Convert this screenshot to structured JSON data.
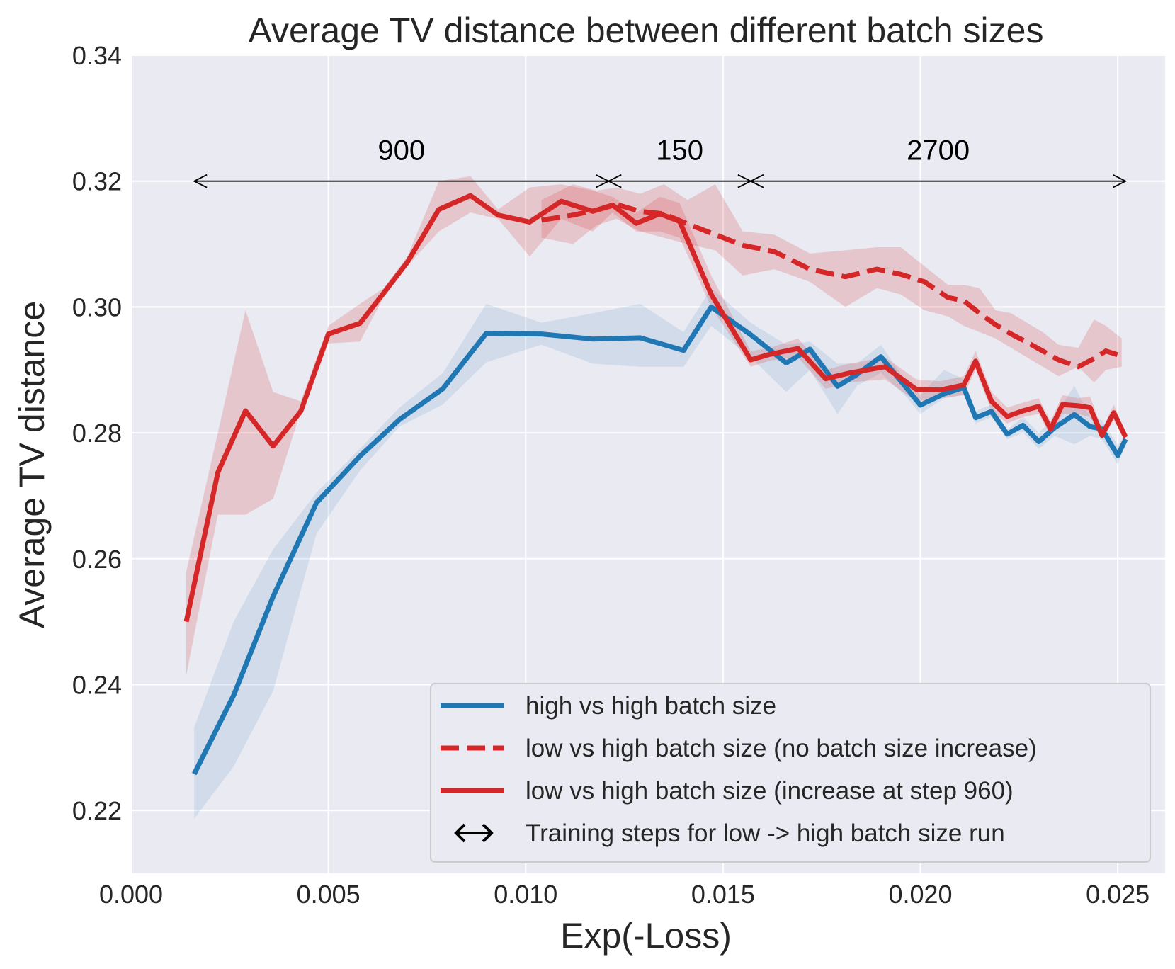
{
  "chart_data": {
    "type": "line",
    "title": "Average TV distance between different batch sizes",
    "xlabel": "Exp(-Loss)",
    "ylabel": "Average TV distance",
    "xlim": [
      0.0,
      0.0262
    ],
    "ylim": [
      0.21,
      0.34
    ],
    "xticks": [
      0.0,
      0.005,
      0.01,
      0.015,
      0.02,
      0.025
    ],
    "xtick_labels": [
      "0.000",
      "0.005",
      "0.010",
      "0.015",
      "0.020",
      "0.025"
    ],
    "yticks": [
      0.22,
      0.24,
      0.26,
      0.28,
      0.3,
      0.32,
      0.34
    ],
    "ytick_labels": [
      "0.22",
      "0.24",
      "0.26",
      "0.28",
      "0.30",
      "0.32",
      "0.34"
    ],
    "grid": true,
    "legend_position": "lower-right",
    "colors": {
      "blue": "#1f77b4",
      "red": "#d62728",
      "background": "#eaeaf2",
      "grid": "#ffffff"
    },
    "series": [
      {
        "name": "high vs high batch size",
        "color": "#1f77b4",
        "style": "solid",
        "x": [
          0.0016,
          0.0026,
          0.0036,
          0.0047,
          0.0058,
          0.0068,
          0.0079,
          0.009,
          0.0104,
          0.0117,
          0.0129,
          0.014,
          0.0147,
          0.0157,
          0.0166,
          0.0172,
          0.0179,
          0.0184,
          0.019,
          0.0196,
          0.02,
          0.0206,
          0.0211,
          0.0214,
          0.0218,
          0.0222,
          0.0226,
          0.023,
          0.0234,
          0.0239,
          0.0243,
          0.0246,
          0.025,
          0.0252
        ],
        "y": [
          0.2258,
          0.2383,
          0.254,
          0.2689,
          0.2763,
          0.2821,
          0.287,
          0.2958,
          0.2957,
          0.2949,
          0.2951,
          0.2931,
          0.3,
          0.2956,
          0.2911,
          0.2933,
          0.2874,
          0.2893,
          0.2921,
          0.2875,
          0.2844,
          0.2862,
          0.2872,
          0.2824,
          0.2834,
          0.2798,
          0.2812,
          0.2786,
          0.2808,
          0.2829,
          0.281,
          0.2806,
          0.2764,
          0.279
        ],
        "band_low": [
          0.2187,
          0.227,
          0.239,
          0.264,
          0.274,
          0.281,
          0.2845,
          0.2912,
          0.294,
          0.291,
          0.2905,
          0.2905,
          0.297,
          0.292,
          0.2865,
          0.29,
          0.283,
          0.2875,
          0.2895,
          0.286,
          0.283,
          0.2855,
          0.286,
          0.2815,
          0.2825,
          0.279,
          0.28,
          0.2775,
          0.2795,
          0.2782,
          0.2795,
          0.279,
          0.275,
          0.2782
        ],
        "band_high": [
          0.2332,
          0.25,
          0.2615,
          0.2705,
          0.2775,
          0.284,
          0.2895,
          0.3005,
          0.2975,
          0.299,
          0.3005,
          0.296,
          0.303,
          0.2975,
          0.294,
          0.2945,
          0.291,
          0.291,
          0.294,
          0.2885,
          0.286,
          0.29,
          0.2885,
          0.2835,
          0.2845,
          0.2805,
          0.2825,
          0.28,
          0.2825,
          0.2875,
          0.2825,
          0.282,
          0.278,
          0.2798
        ]
      },
      {
        "name": "low vs high batch size (no batch size increase)",
        "color": "#d62728",
        "style": "dashed",
        "x": [
          0.0104,
          0.0112,
          0.0118,
          0.0123,
          0.0129,
          0.0135,
          0.0141,
          0.0148,
          0.0155,
          0.0163,
          0.0172,
          0.0181,
          0.0189,
          0.0195,
          0.0201,
          0.0207,
          0.0211,
          0.0215,
          0.0219,
          0.0223,
          0.0227,
          0.0231,
          0.0235,
          0.024,
          0.0244,
          0.0247,
          0.0251
        ],
        "y": [
          0.3138,
          0.3146,
          0.3154,
          0.3163,
          0.3152,
          0.3148,
          0.3132,
          0.3115,
          0.3098,
          0.3088,
          0.306,
          0.3048,
          0.306,
          0.3052,
          0.304,
          0.3015,
          0.301,
          0.299,
          0.2972,
          0.2957,
          0.2944,
          0.293,
          0.2916,
          0.2905,
          0.2918,
          0.293,
          0.2922
        ],
        "band_low": [
          0.311,
          0.31,
          0.313,
          0.314,
          0.312,
          0.311,
          0.31,
          0.309,
          0.305,
          0.306,
          0.304,
          0.3,
          0.303,
          0.302,
          0.2995,
          0.2985,
          0.297,
          0.296,
          0.295,
          0.2935,
          0.292,
          0.2905,
          0.289,
          0.2905,
          0.288,
          0.29,
          0.2905
        ],
        "band_high": [
          0.317,
          0.3195,
          0.3185,
          0.319,
          0.318,
          0.3195,
          0.317,
          0.3195,
          0.312,
          0.3115,
          0.3085,
          0.309,
          0.3095,
          0.3095,
          0.3065,
          0.3035,
          0.3035,
          0.303,
          0.2995,
          0.299,
          0.2975,
          0.296,
          0.294,
          0.2935,
          0.298,
          0.297,
          0.295
        ]
      },
      {
        "name": "low vs high batch size (increase at step 960)",
        "color": "#d62728",
        "style": "solid",
        "x": [
          0.0014,
          0.0022,
          0.0029,
          0.0036,
          0.0043,
          0.005,
          0.0058,
          0.0064,
          0.007,
          0.0078,
          0.0086,
          0.0093,
          0.0101,
          0.0109,
          0.0117,
          0.0122,
          0.0128,
          0.0134,
          0.0139,
          0.0147,
          0.0157,
          0.0162,
          0.0169,
          0.0176,
          0.0182,
          0.0191,
          0.0199,
          0.0205,
          0.0211,
          0.0214,
          0.0218,
          0.0222,
          0.0226,
          0.023,
          0.0233,
          0.0236,
          0.024,
          0.0243,
          0.0246,
          0.0249,
          0.0252
        ],
        "y": [
          0.25,
          0.2737,
          0.2835,
          0.2779,
          0.2834,
          0.2957,
          0.2974,
          0.3022,
          0.3071,
          0.3155,
          0.3177,
          0.3146,
          0.3135,
          0.3168,
          0.3152,
          0.3162,
          0.3133,
          0.3148,
          0.3136,
          0.302,
          0.2916,
          0.2925,
          0.2934,
          0.2886,
          0.2895,
          0.2905,
          0.2869,
          0.2868,
          0.2876,
          0.2914,
          0.285,
          0.2826,
          0.2835,
          0.2842,
          0.2806,
          0.2845,
          0.2843,
          0.284,
          0.2796,
          0.2832,
          0.2793
        ],
        "band_low": [
          0.2415,
          0.267,
          0.267,
          0.2695,
          0.2835,
          0.2942,
          0.2945,
          0.3015,
          0.3065,
          0.312,
          0.315,
          0.314,
          0.308,
          0.314,
          0.312,
          0.315,
          0.312,
          0.312,
          0.311,
          0.3,
          0.2905,
          0.2915,
          0.292,
          0.287,
          0.288,
          0.2885,
          0.285,
          0.2855,
          0.286,
          0.29,
          0.2835,
          0.2815,
          0.2825,
          0.283,
          0.2795,
          0.283,
          0.283,
          0.2825,
          0.279,
          0.282,
          0.2785
        ],
        "band_high": [
          0.258,
          0.28,
          0.2995,
          0.2865,
          0.285,
          0.297,
          0.3005,
          0.303,
          0.308,
          0.32,
          0.3208,
          0.3155,
          0.319,
          0.3195,
          0.3185,
          0.3175,
          0.315,
          0.3175,
          0.3165,
          0.305,
          0.293,
          0.2935,
          0.295,
          0.29,
          0.291,
          0.292,
          0.2885,
          0.2882,
          0.289,
          0.293,
          0.2865,
          0.284,
          0.2848,
          0.2855,
          0.2818,
          0.286,
          0.2855,
          0.2858,
          0.2805,
          0.2845,
          0.28
        ]
      }
    ],
    "annotations": [
      {
        "label": "900",
        "x_start": 0.0016,
        "x_end": 0.0121,
        "y": 0.32
      },
      {
        "label": "150",
        "x_start": 0.0121,
        "x_end": 0.0157,
        "y": 0.32
      },
      {
        "label": "2700",
        "x_start": 0.0157,
        "x_end": 0.0252,
        "y": 0.32
      }
    ],
    "legend": [
      {
        "label": "high vs high batch size",
        "marker": "line-solid",
        "color": "#1f77b4"
      },
      {
        "label": "low vs high batch size (no batch size increase)",
        "marker": "line-dashed",
        "color": "#d62728"
      },
      {
        "label": "low vs high batch size (increase at step 960)",
        "marker": "line-solid",
        "color": "#d62728"
      },
      {
        "label": "Training steps for low -> high batch size run",
        "marker": "double-arrow",
        "color": "#000000"
      }
    ]
  }
}
